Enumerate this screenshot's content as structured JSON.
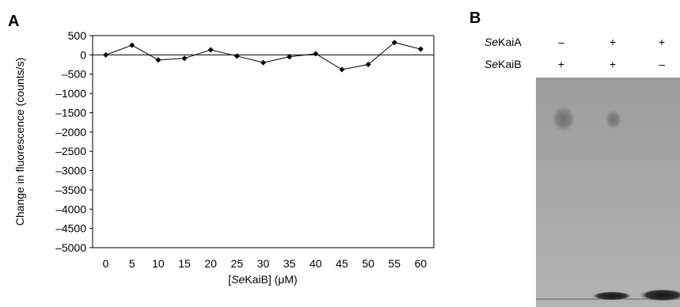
{
  "panel_a": {
    "letter": "A"
  },
  "panel_b": {
    "letter": "B",
    "rows": [
      {
        "label_italic": "Se",
        "label_rest": "KaiA",
        "signs": [
          "–",
          "+",
          "+"
        ]
      },
      {
        "label_italic": "Se",
        "label_rest": "KaiB",
        "signs": [
          "+",
          "+",
          "–"
        ]
      }
    ]
  },
  "chart_data": {
    "type": "line",
    "ylabel": "Change in fluorescence (counts/s)",
    "xlabel_pre": "[",
    "xlabel_italic": "Se",
    "xlabel_post": "KaiB] (μM)",
    "x": [
      0,
      5,
      10,
      15,
      20,
      25,
      30,
      35,
      40,
      45,
      50,
      55,
      60
    ],
    "y": [
      0,
      250,
      -130,
      -90,
      130,
      -30,
      -200,
      -50,
      30,
      -380,
      -250,
      320,
      150
    ],
    "xticks": [
      "0",
      "5",
      "10",
      "15",
      "20",
      "25",
      "30",
      "35",
      "40",
      "45",
      "50",
      "55",
      "60"
    ],
    "yticks": [
      "500",
      "0",
      "–500",
      "–1000",
      "–1500",
      "–2000",
      "–2500",
      "–3000",
      "–3500",
      "–4000",
      "–4500",
      "–5000"
    ],
    "ylim": [
      -5000,
      500
    ],
    "marker": "diamond",
    "line_color": "#000000"
  }
}
